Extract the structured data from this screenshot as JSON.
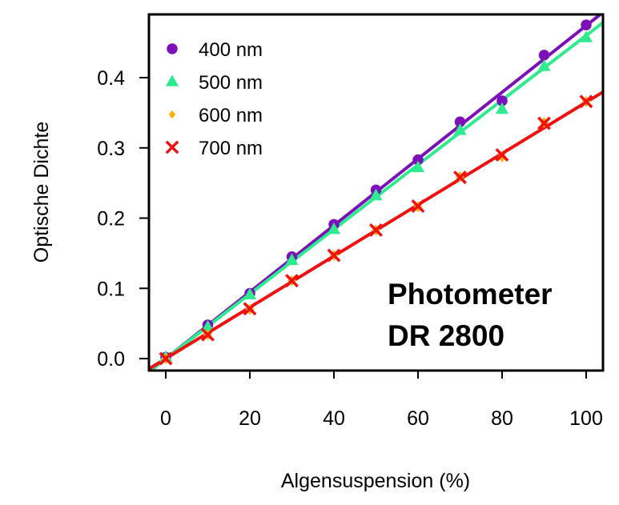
{
  "chart_data": {
    "type": "scatter",
    "title": "",
    "xlabel": "Algensuspension (%)",
    "ylabel": "Optische Dichte",
    "xlim": [
      -4,
      104
    ],
    "ylim": [
      -0.017,
      0.49
    ],
    "x_ticks": [
      0,
      20,
      40,
      60,
      80,
      100
    ],
    "y_ticks": [
      0.0,
      0.1,
      0.2,
      0.3,
      0.4
    ],
    "x_tick_labels": [
      "0",
      "20",
      "40",
      "60",
      "80",
      "100"
    ],
    "y_tick_labels": [
      "0.0",
      "0.1",
      "0.2",
      "0.3",
      "0.4"
    ],
    "grid": false,
    "legend_position": "top-left",
    "annotation": [
      "Photometer",
      "DR 2800"
    ],
    "x": [
      0,
      10,
      20,
      30,
      40,
      50,
      60,
      70,
      80,
      90,
      100
    ],
    "series": [
      {
        "name": "400 nm",
        "marker": "circle",
        "color": "#7B10B8",
        "values": [
          0.002,
          0.048,
          0.093,
          0.145,
          0.191,
          0.24,
          0.283,
          0.337,
          0.367,
          0.432,
          0.475
        ],
        "fit": [
          0.0,
          0.00474
        ]
      },
      {
        "name": "500 nm",
        "marker": "triangle",
        "color": "#2EEB8F",
        "values": [
          0.002,
          0.045,
          0.091,
          0.14,
          0.184,
          0.232,
          0.272,
          0.325,
          0.355,
          0.416,
          0.457
        ],
        "fit": [
          0.0,
          0.0046
        ]
      },
      {
        "name": "600 nm",
        "marker": "diamond",
        "color": "#FFB000",
        "values": [
          0.0,
          0.034,
          0.07,
          0.111,
          0.147,
          0.183,
          0.216,
          0.259,
          0.287,
          0.336,
          0.366
        ],
        "fit": null
      },
      {
        "name": "700 nm",
        "marker": "cross",
        "color": "#F01010",
        "values": [
          0.0,
          0.034,
          0.071,
          0.111,
          0.147,
          0.183,
          0.217,
          0.258,
          0.29,
          0.335,
          0.366
        ],
        "fit": [
          0.0,
          0.00365
        ]
      }
    ]
  }
}
